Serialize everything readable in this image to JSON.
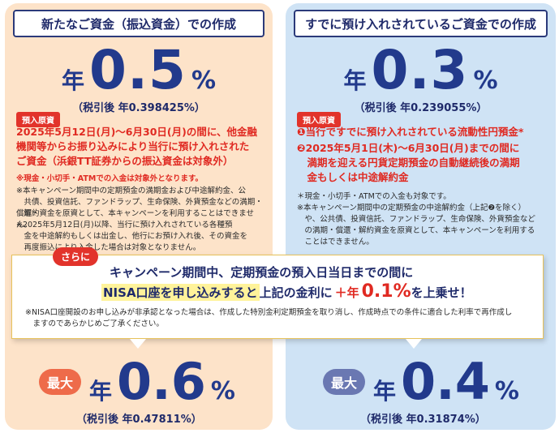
{
  "left": {
    "header": "新たなご資金（振込資金）での作成",
    "rate": {
      "prefix": "年",
      "value": "0.5",
      "unit": "%"
    },
    "after_tax": "（税引後 年0.398425%）",
    "badge": "預入原資",
    "red_lines": [
      "2025年5月12日(月)～6月30日(月)の間に、他金融",
      "機関等からお振り込みにより当行に預け入れされた",
      "ご資金（浜銀TT証券からの振込資金は対象外）"
    ],
    "notes": [
      "※現金・小切手・ATMでの入金は対象外となります。",
      "※本キャンペーン期間中の定期預金の満期金および中途解約金、公",
      "　共債、投資信託、ファンドラップ、生命保険、外貨預金などの満期・償還・",
      "　解約資金を原資として、本キャンペーンを利用することはできません。",
      "※2025年5月12日(月)以降、当行に預け入れされている各種預",
      "　金を中途解約もしくは出金し、他行にお預け入れ後、その資金を",
      "　再度振込により入金した場合は対象となりません。"
    ],
    "max_label": "最大",
    "max_rate": {
      "prefix": "年",
      "value": "0.6",
      "unit": "%"
    },
    "max_after_tax": "（税引後 年0.47811%）"
  },
  "right": {
    "header": "すでに預け入れされているご資金での作成",
    "rate": {
      "prefix": "年",
      "value": "0.3",
      "unit": "%"
    },
    "after_tax": "（税引後 年0.239055%）",
    "badge": "預入原資",
    "item1": "❶当行ですでに預け入れされている流動性円預金*",
    "item2_lines": [
      "❷2025年5月1日(木)～6月30日(月)までの間に",
      "　満期を迎える円貨定期預金の自動継続後の満期",
      "　金もしくは中途解約金"
    ],
    "notes": [
      "＊現金・小切手・ATMでの入金も対象です。",
      "※本キャンペーン期間中の定期預金の中途解約金（上記❷を除く）",
      "　や、公共債、投資信託、ファンドラップ、生命保険、外貨預金など",
      "　の満期・償還・解約資金を原資として、本キャンペーンを利用する",
      "　ことはできません。"
    ],
    "max_label": "最大",
    "max_rate": {
      "prefix": "年",
      "value": "0.4",
      "unit": "%"
    },
    "max_after_tax": "（税引後 年0.31874%）"
  },
  "middle": {
    "tag": "さらに",
    "line1": "キャンペーン期間中、定期預金の預入日当日までの間に",
    "line2_highlight": "NISA口座を申し込みすると",
    "line2_rest": "上記の金利に",
    "plus_prefix": "＋年",
    "plus_value": "0.1%",
    "line2_end": "を上乗せ！",
    "note_lines": [
      "※NISA口座開設のお申し込みが非承認となった場合は、作成した特別金利定期預金を取り消し、作成時点での条件に適合した利率で再作成し",
      "　ますのであらかじめご了承ください。"
    ]
  },
  "colors": {
    "left_bg": "#fde3c9",
    "right_bg": "#cfe3f5",
    "accent_red": "#e2332b",
    "navy": "#223a8c",
    "left_pill": "#ee6b4a",
    "right_pill": "#6a78b2"
  }
}
